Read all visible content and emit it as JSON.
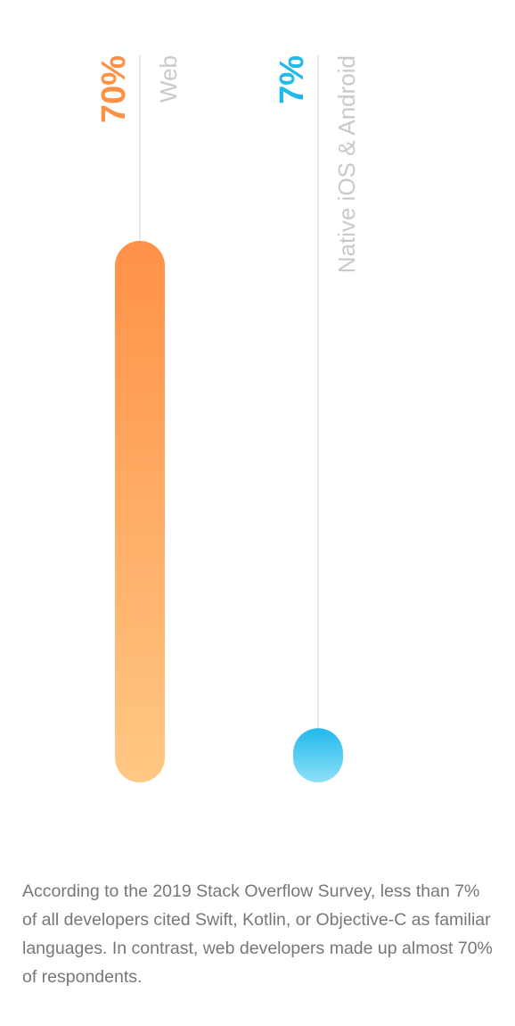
{
  "chart_data": {
    "type": "bar",
    "orientation": "vertical",
    "categories": [
      "Web",
      "Native iOS & Android"
    ],
    "values": [
      70,
      7
    ],
    "value_labels": [
      "70%",
      "7%"
    ],
    "unit": "%",
    "ylim": [
      0,
      70
    ],
    "grid": false,
    "colors": {
      "Web": {
        "top": "#ff9147",
        "bottom": "#ffc884"
      },
      "Native iOS & Android": {
        "top": "#21b8ec",
        "bottom": "#8fe0f7"
      },
      "guide_line": "#e2e2e4",
      "category_label": "#c9c9cc"
    }
  },
  "caption": "According to the 2019 Stack Overflow Survey, less than 7% of all developers cited Swift, Kotlin, or Objective-C as familiar languages. In contrast, web developers made up almost 70% of respondents."
}
